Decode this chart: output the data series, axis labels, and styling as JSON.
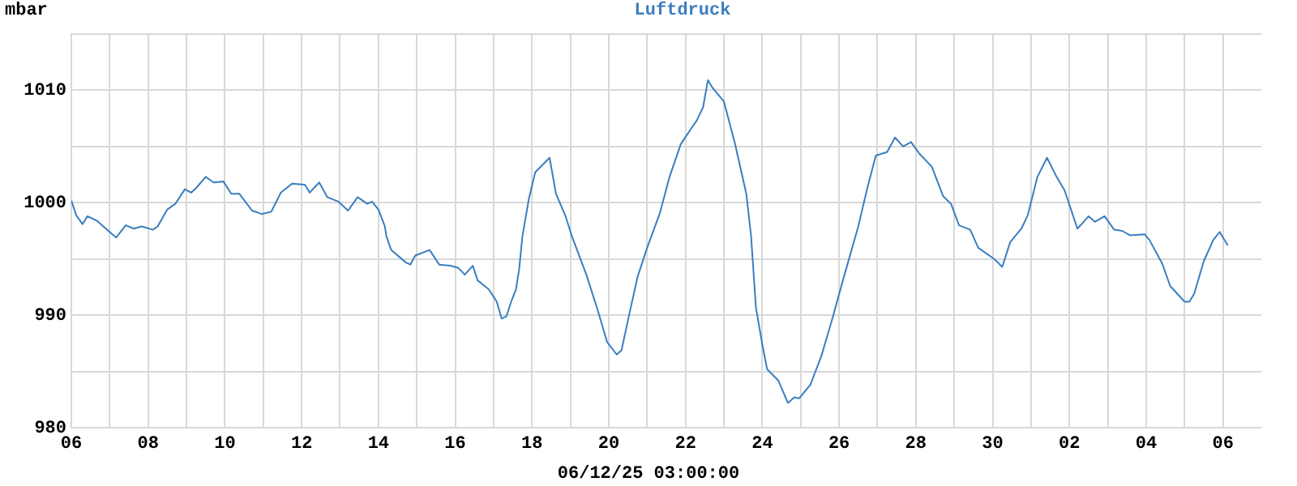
{
  "chart_data": {
    "type": "line",
    "title": "Luftdruck",
    "ylabel": "mbar",
    "xlabel": "06/12/25 03:00:00",
    "x": [
      "--11-06T00:00",
      "--11-06T03:00",
      "--11-06T07:00",
      "--11-06T10:00",
      "--11-06T16:00",
      "--11-06T20:00",
      "--11-07T04:00",
      "--11-07T10:00",
      "--11-07T15:00",
      "--11-07T20:00",
      "--11-08T03:00",
      "--11-08T06:00",
      "--11-08T12:00",
      "--11-08T17:00",
      "--11-08T23:00",
      "--11-09T03:00",
      "--11-09T06:00",
      "--11-09T12:00",
      "--11-09T17:00",
      "--11-09T23:00",
      "--11-10T04:00",
      "--11-10T09:00",
      "--11-10T17:00",
      "--11-10T23:00",
      "--11-11T05:00",
      "--11-11T11:00",
      "--11-11T18:00",
      "--11-12T02:00",
      "--11-12T05:00",
      "--11-12T11:00",
      "--11-12T16:00",
      "--11-12T23:00",
      "--11-13T05:00",
      "--11-13T11:00",
      "--11-13T17:00",
      "--11-13T20:00",
      "--11-14T00:00",
      "--11-14T04:00",
      "--11-14T05:00",
      "--11-14T08:00",
      "--11-14T17:00",
      "--11-14T20:00",
      "--11-14T23:00",
      "--11-15T08:00",
      "--11-15T14:00",
      "--11-15T21:00",
      "--11-16T02:00",
      "--11-16T06:00",
      "--11-16T11:00",
      "--11-16T14:00",
      "--11-16T21:00",
      "--11-17T02:00",
      "--11-17T05:00",
      "--11-17T08:00",
      "--11-17T11:00",
      "--11-17T14:00",
      "--11-17T16:00",
      "--11-17T18:00",
      "--11-17T22:00",
      "--11-18T02:00",
      "--11-18T11:00",
      "--11-18T15:00",
      "--11-18T21:00",
      "--11-19T01:00",
      "--11-19T10:00",
      "--11-19T17:00",
      "--11-19T23:00",
      "--11-20T05:00",
      "--11-20T08:00",
      "--11-20T13:00",
      "--11-20T18:00",
      "--11-21T00:00",
      "--11-21T08:00",
      "--11-21T14:00",
      "--11-21T21:00",
      "--11-22T04:00",
      "--11-22T07:00",
      "--11-22T11:00",
      "--11-22T14:00",
      "--11-22T17:00",
      "--11-23T00:00",
      "--11-23T07:00",
      "--11-23T14:00",
      "--11-23T17:00",
      "--11-23T20:00",
      "--11-24T00:00",
      "--11-24T03:00",
      "--11-24T10:00",
      "--11-24T16:00",
      "--11-24T20:00",
      "--11-24T23:00",
      "--11-25T06:00",
      "--11-25T13:00",
      "--11-25T20:00",
      "--11-26T02:00",
      "--11-26T12:00",
      "--11-26T18:00",
      "--11-26T23:00",
      "--11-27T06:00",
      "--11-27T11:00",
      "--11-27T16:00",
      "--11-27T21:00",
      "--11-28T02:00",
      "--11-28T10:00",
      "--11-28T17:00",
      "--11-28T22:00",
      "--11-29T03:00",
      "--11-29T10:00",
      "--11-29T15:00",
      "--11-30T01:00",
      "--11-30T06:00",
      "--11-30T11:00",
      "--11-30T18:00",
      "--11-30T22:00",
      "--12-01T04:00",
      "--12-01T10:00",
      "--12-01T16:00",
      "--12-01T21:00",
      "--12-02T05:00",
      "--12-02T07:00",
      "--12-02T12:00",
      "--12-02T16:00",
      "--12-02T22:00",
      "--12-03T04:00",
      "--12-03T09:00",
      "--12-03T14:00",
      "--12-03T23:00",
      "--12-04T02:00",
      "--12-04T10:00",
      "--12-04T15:00",
      "--12-05T00:00",
      "--12-05T03:00",
      "--12-05T06:00",
      "--12-05T12:00",
      "--12-05T18:00",
      "--12-05T22:00",
      "--12-06T03:00"
    ],
    "series": [
      {
        "color": "#3a7ebf",
        "values": [
          1000.2,
          998.9,
          998.1,
          998.8,
          998.4,
          997.9,
          996.9,
          998.0,
          997.7,
          997.9,
          997.6,
          997.9,
          999.4,
          999.9,
          1001.2,
          1000.9,
          1001.3,
          1002.3,
          1001.8,
          1001.9,
          1000.8,
          1000.8,
          999.3,
          999.0,
          999.2,
          1000.9,
          1001.7,
          1001.6,
          1000.9,
          1001.8,
          1000.5,
          1000.1,
          999.3,
          1000.5,
          999.9,
          1000.1,
          999.4,
          997.9,
          997.0,
          995.8,
          994.7,
          994.5,
          995.3,
          995.8,
          994.5,
          994.4,
          994.2,
          993.6,
          994.4,
          993.1,
          992.3,
          991.2,
          989.7,
          989.9,
          991.2,
          992.3,
          994.1,
          997.0,
          1000.3,
          1002.7,
          1004.0,
          1000.8,
          998.8,
          997.0,
          993.6,
          990.5,
          987.6,
          986.5,
          986.9,
          990.2,
          993.4,
          996.0,
          999.1,
          1002.3,
          1005.2,
          1006.7,
          1007.3,
          1008.5,
          1010.9,
          1010.2,
          1009.0,
          1005.2,
          1000.8,
          997.0,
          990.7,
          987.4,
          985.2,
          984.2,
          982.2,
          982.7,
          982.6,
          983.8,
          986.4,
          989.8,
          992.9,
          997.9,
          1001.5,
          1004.2,
          1004.5,
          1005.8,
          1005.0,
          1005.4,
          1004.4,
          1003.2,
          1000.6,
          999.9,
          998.0,
          997.6,
          996.0,
          995.0,
          994.3,
          996.5,
          997.7,
          998.9,
          1002.3,
          1004.0,
          1002.3,
          1001.1,
          997.7,
          998.0,
          998.8,
          998.3,
          998.8,
          997.6,
          997.5,
          997.1,
          997.2,
          996.7,
          994.6,
          992.6,
          991.2,
          991.2,
          991.9,
          994.8,
          996.7,
          997.4,
          996.2
        ]
      }
    ],
    "xlim": [
      "--11-06",
      "--12-07"
    ],
    "xticks": [
      {
        "value": "--11-06",
        "label": "06"
      },
      {
        "value": "--11-07",
        "label": null
      },
      {
        "value": "--11-08",
        "label": "08"
      },
      {
        "value": "--11-09",
        "label": null
      },
      {
        "value": "--11-10",
        "label": "10"
      },
      {
        "value": "--11-11",
        "label": null
      },
      {
        "value": "--11-12",
        "label": "12"
      },
      {
        "value": "--11-13",
        "label": null
      },
      {
        "value": "--11-14",
        "label": "14"
      },
      {
        "value": "--11-15",
        "label": null
      },
      {
        "value": "--11-16",
        "label": "16"
      },
      {
        "value": "--11-17",
        "label": null
      },
      {
        "value": "--11-18",
        "label": "18"
      },
      {
        "value": "--11-19",
        "label": null
      },
      {
        "value": "--11-20",
        "label": "20"
      },
      {
        "value": "--11-21",
        "label": null
      },
      {
        "value": "--11-22",
        "label": "22"
      },
      {
        "value": "--11-23",
        "label": null
      },
      {
        "value": "--11-24",
        "label": "24"
      },
      {
        "value": "--11-25",
        "label": null
      },
      {
        "value": "--11-26",
        "label": "26"
      },
      {
        "value": "--11-27",
        "label": null
      },
      {
        "value": "--11-28",
        "label": "28"
      },
      {
        "value": "--11-29",
        "label": null
      },
      {
        "value": "--11-30",
        "label": "30"
      },
      {
        "value": "--12-01",
        "label": null
      },
      {
        "value": "--12-02",
        "label": "02"
      },
      {
        "value": "--12-03",
        "label": null
      },
      {
        "value": "--12-04",
        "label": "04"
      },
      {
        "value": "--12-05",
        "label": null
      },
      {
        "value": "--12-06",
        "label": "06"
      }
    ],
    "ylim": [
      980,
      1015
    ],
    "yticks": [
      980,
      {
        "value": 985,
        "label": null
      },
      990,
      {
        "value": 995,
        "label": null
      },
      1000,
      {
        "value": 1005,
        "label": null
      },
      1010,
      {
        "value": 1015,
        "label": null
      }
    ],
    "grid": true,
    "marker": "none",
    "line_style": "solid"
  }
}
